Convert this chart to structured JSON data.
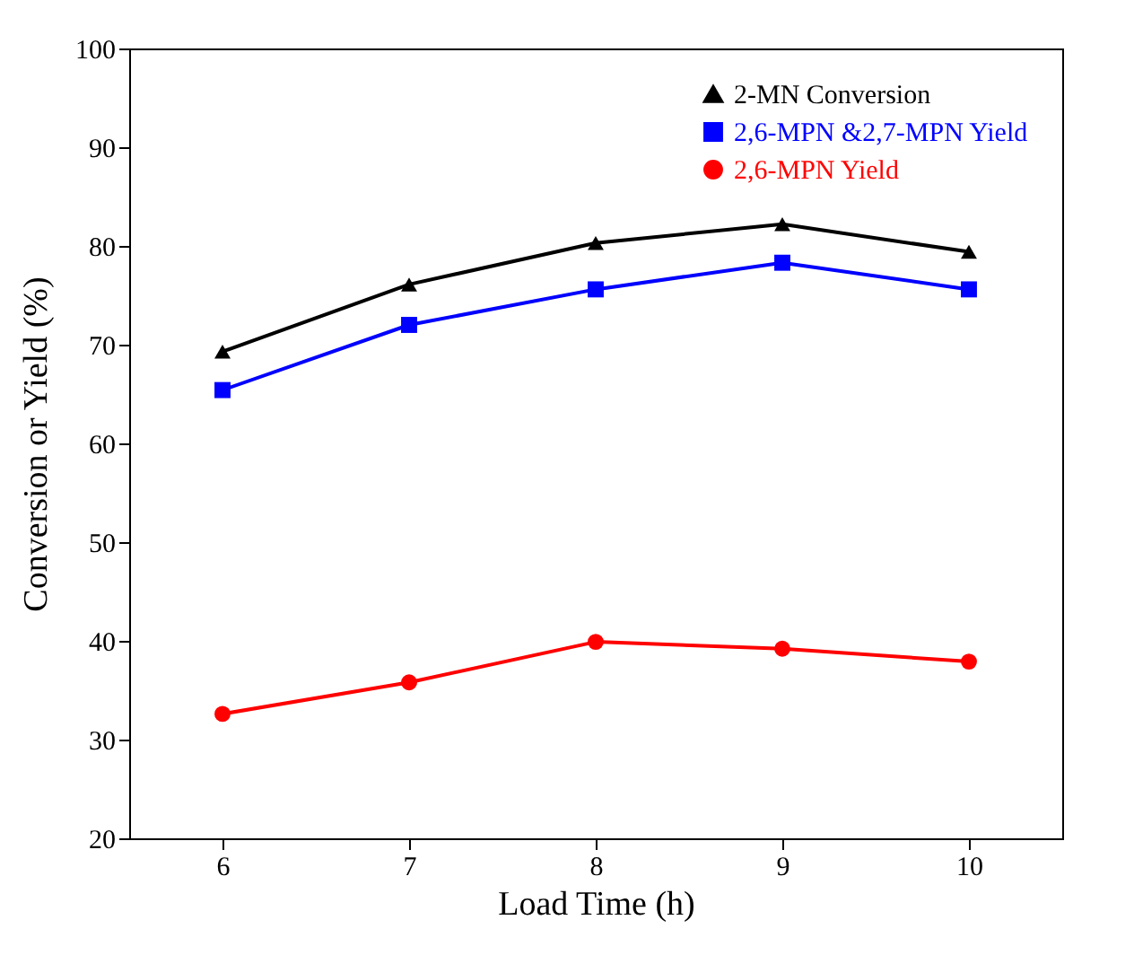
{
  "chart_data": {
    "type": "line",
    "xlabel": "Load Time (h)",
    "ylabel": "Conversion or Yield (%)",
    "x": [
      6,
      7,
      8,
      9,
      10
    ],
    "xlim": [
      5.5,
      10.5
    ],
    "xticks": [
      6,
      7,
      8,
      9,
      10
    ],
    "ylim": [
      20,
      100
    ],
    "yticks": [
      20,
      30,
      40,
      50,
      60,
      70,
      80,
      90,
      100
    ],
    "grid": false,
    "legend": "top right",
    "line_style": "solid",
    "series": [
      {
        "name": "2-MN Conversion",
        "color": "#000000",
        "marker": "triangle",
        "values": [
          69.3,
          76.1,
          80.3,
          82.2,
          79.4
        ]
      },
      {
        "name": "2,6-MPN &2,7-MPN Yield",
        "color": "#0000ff",
        "marker": "square",
        "values": [
          65.4,
          72.0,
          75.6,
          78.3,
          75.6
        ]
      },
      {
        "name": "2,6-MPN Yield",
        "color": "#ff0000",
        "marker": "circle",
        "values": [
          32.6,
          35.8,
          39.9,
          39.2,
          37.9
        ]
      }
    ]
  }
}
